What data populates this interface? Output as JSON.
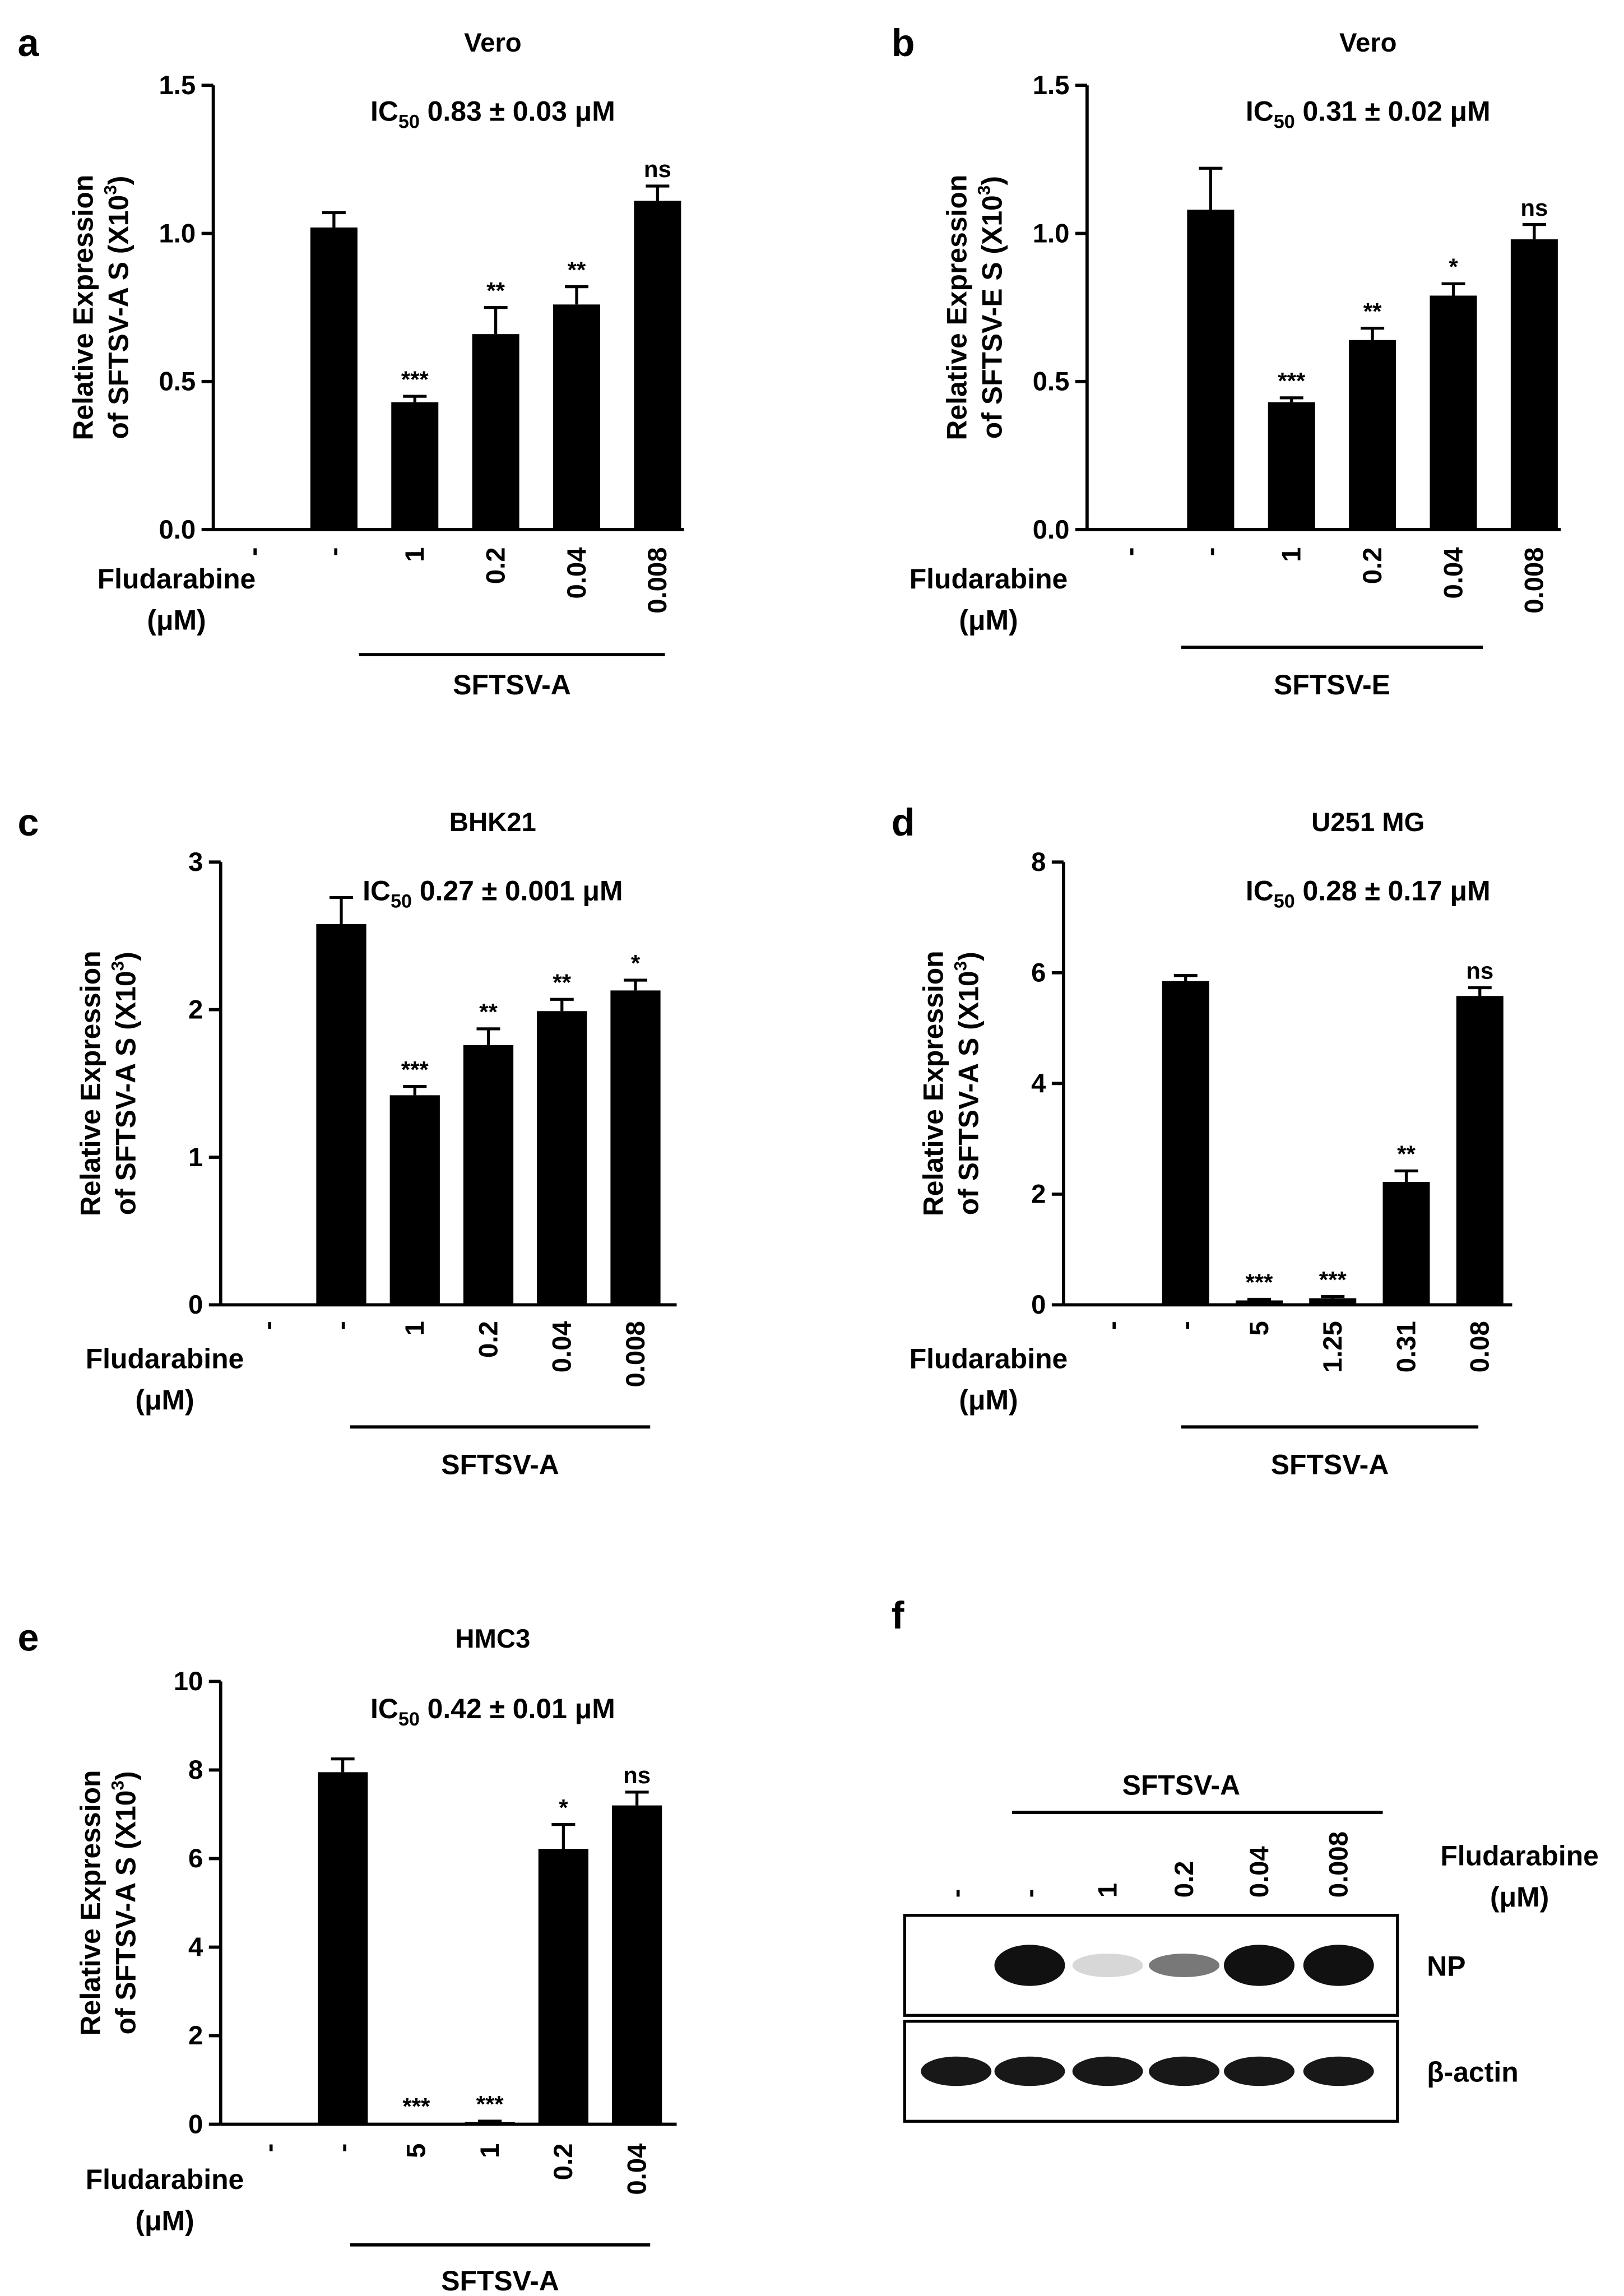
{
  "chart_data": [
    {
      "panel": "a",
      "type": "bar",
      "title": "Vero",
      "ic50": "0.83 ± 0.03 μM",
      "ylabel_line1": "Relative Expression",
      "ylabel_line2": "of SFTSV-A S (X10",
      "ylim": [
        0,
        1.5
      ],
      "yticks": [
        "0.0",
        "0.5",
        "1.0",
        "1.5"
      ],
      "xlabel_line1": "Fludarabine",
      "xlabel_line2": "(μM)",
      "categories": [
        "-",
        "-",
        "1",
        "0.2",
        "0.04",
        "0.008"
      ],
      "values": [
        0,
        1.02,
        0.43,
        0.66,
        0.76,
        1.11
      ],
      "errors": [
        0,
        0.05,
        0.02,
        0.09,
        0.06,
        0.05
      ],
      "significance": [
        "",
        "",
        "***",
        "**",
        "**",
        "ns"
      ],
      "group_label": "SFTSV-A"
    },
    {
      "panel": "b",
      "type": "bar",
      "title": "Vero",
      "ic50": "0.31 ± 0.02 μM",
      "ylabel_line1": "Relative Expression",
      "ylabel_line2": "of SFTSV-E S (X10",
      "ylim": [
        0,
        1.5
      ],
      "yticks": [
        "0.0",
        "0.5",
        "1.0",
        "1.5"
      ],
      "xlabel_line1": "Fludarabine",
      "xlabel_line2": "(μM)",
      "categories": [
        "-",
        "-",
        "1",
        "0.2",
        "0.04",
        "0.008"
      ],
      "values": [
        0,
        1.08,
        0.43,
        0.64,
        0.79,
        0.98
      ],
      "errors": [
        0,
        0.14,
        0.015,
        0.04,
        0.04,
        0.05
      ],
      "significance": [
        "",
        "",
        "***",
        "**",
        "*",
        "ns"
      ],
      "group_label": "SFTSV-E"
    },
    {
      "panel": "c",
      "type": "bar",
      "title": "BHK21",
      "ic50": "0.27 ± 0.001 μM",
      "ylabel_line1": "Relative Expression",
      "ylabel_line2": "of SFTSV-A S (X10",
      "ylim": [
        0,
        3
      ],
      "yticks": [
        "0",
        "1",
        "2",
        "3"
      ],
      "xlabel_line1": "Fludarabine",
      "xlabel_line2": "(μM)",
      "categories": [
        "-",
        "-",
        "1",
        "0.2",
        "0.04",
        "0.008"
      ],
      "values": [
        0,
        2.58,
        1.42,
        1.76,
        1.99,
        2.13
      ],
      "errors": [
        0,
        0.18,
        0.06,
        0.11,
        0.08,
        0.07
      ],
      "significance": [
        "",
        "",
        "***",
        "**",
        "**",
        "*"
      ],
      "group_label": "SFTSV-A"
    },
    {
      "panel": "d",
      "type": "bar",
      "title": "U251 MG",
      "ic50": "0.28 ± 0.17 μM",
      "ylabel_line1": "Relative Expression",
      "ylabel_line2": "of SFTSV-A S (X10",
      "ylim": [
        0,
        8
      ],
      "yticks": [
        "0",
        "2",
        "4",
        "6",
        "8"
      ],
      "xlabel_line1": "Fludarabine",
      "xlabel_line2": "(μM)",
      "categories": [
        "-",
        "-",
        "5",
        "1.25",
        "0.31",
        "0.08"
      ],
      "values": [
        0,
        5.85,
        0.08,
        0.12,
        2.22,
        5.58
      ],
      "errors": [
        0,
        0.1,
        0.02,
        0.03,
        0.2,
        0.15
      ],
      "significance": [
        "",
        "",
        "***",
        "***",
        "**",
        "ns"
      ],
      "group_label": "SFTSV-A"
    },
    {
      "panel": "e",
      "type": "bar",
      "title": "HMC3",
      "ic50": "0.42 ± 0.01 μM",
      "ylabel_line1": "Relative Expression",
      "ylabel_line2": "of SFTSV-A S (X10",
      "ylim": [
        0,
        10
      ],
      "yticks": [
        "0",
        "2",
        "4",
        "6",
        "8",
        "10"
      ],
      "xlabel_line1": "Fludarabine",
      "xlabel_line2": "(μM)",
      "categories": [
        "-",
        "-",
        "5",
        "1",
        "0.2",
        "0.04"
      ],
      "values": [
        0,
        7.95,
        0.02,
        0.05,
        6.22,
        7.2
      ],
      "errors": [
        0,
        0.3,
        0,
        0.02,
        0.55,
        0.3
      ],
      "significance": [
        "",
        "",
        "***",
        "***",
        "*",
        "ns"
      ],
      "group_label": "SFTSV-A"
    }
  ],
  "ylabel_exponent": "3",
  "ylabel_close": ")",
  "ic50_prefix": "IC",
  "ic50_subscript": "50",
  "blot": {
    "panel": "f",
    "group_label": "SFTSV-A",
    "xlabel_line1": "Fludarabine",
    "xlabel_line2": "(μM)",
    "lanes": [
      "-",
      "-",
      "1",
      "0.2",
      "0.04",
      "0.008"
    ],
    "rows": [
      {
        "label": "NP",
        "band_intensity": [
          0,
          1,
          0.05,
          0.45,
          1,
          1
        ]
      },
      {
        "label": "β-actin",
        "band_intensity": [
          0.85,
          0.85,
          0.85,
          0.85,
          0.85,
          0.85
        ]
      }
    ]
  }
}
